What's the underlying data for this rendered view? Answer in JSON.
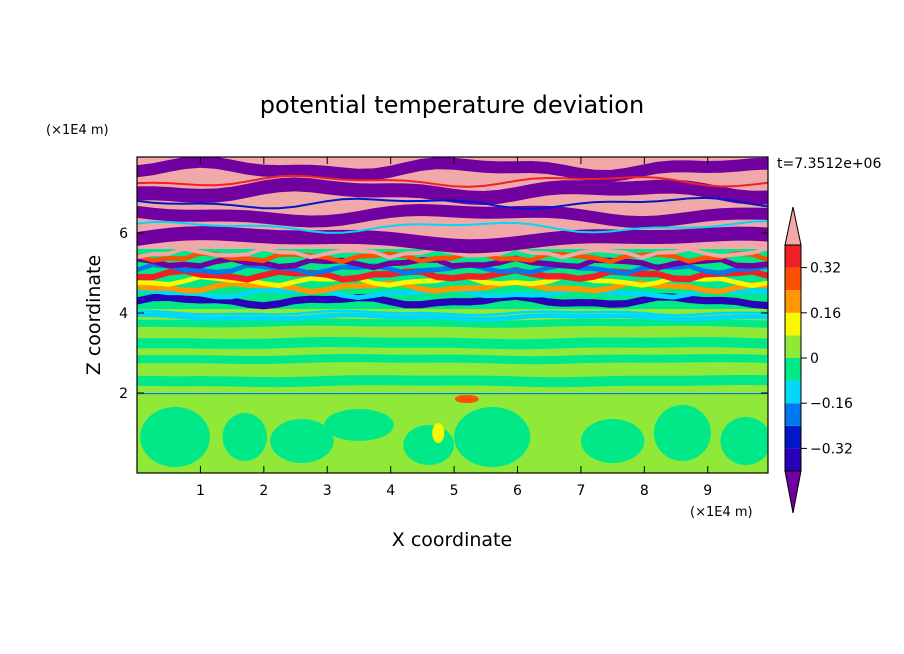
{
  "chart_data": {
    "type": "heatmap",
    "title": "potential temperature deviation",
    "xlabel": "X coordinate",
    "ylabel": "Z coordinate",
    "x_unit": "(×1E4 m)",
    "y_unit": "(×1E4 m)",
    "time_label": "t=7.3512e+06",
    "xlim": [
      0,
      9.95
    ],
    "ylim": [
      0,
      7.9
    ],
    "x_ticks": [
      "1",
      "2",
      "3",
      "4",
      "5",
      "6",
      "7",
      "8",
      "9"
    ],
    "y_ticks": [
      "2",
      "4",
      "6"
    ],
    "colorbar": {
      "tick_labels": [
        "0.32",
        "0.16",
        "0",
        "−0.16",
        "−0.32"
      ],
      "tick_values": [
        0.32,
        0.16,
        0,
        -0.16,
        -0.32
      ],
      "levels": [
        -0.4,
        -0.32,
        -0.24,
        -0.16,
        -0.08,
        0,
        0.08,
        0.16,
        0.24,
        0.32,
        0.4
      ],
      "colors": [
        "#7000a0",
        "#2a00b8",
        "#0018c8",
        "#0078f0",
        "#00d8f8",
        "#00e888",
        "#90e838",
        "#f8f800",
        "#ff9800",
        "#ff5000",
        "#f02028",
        "#f0a8a8"
      ],
      "extend": "both"
    },
    "field_description_layers": [
      {
        "z_range": [
          0,
          2.0
        ],
        "dominant": [
          0,
          0.08
        ],
        "secondary": [
          -0.08,
          0
        ]
      },
      {
        "z_range": [
          2.0,
          4.1
        ],
        "dominant": [
          0,
          0.08
        ],
        "secondary": [
          -0.08,
          0
        ]
      },
      {
        "z_range": [
          4.1,
          5.6
        ],
        "dominant": "mixed",
        "secondary": "mixed"
      },
      {
        "z_range": [
          5.6,
          7.9
        ],
        "dominant": "above 0.4",
        "secondary": "below -0.4"
      }
    ]
  }
}
